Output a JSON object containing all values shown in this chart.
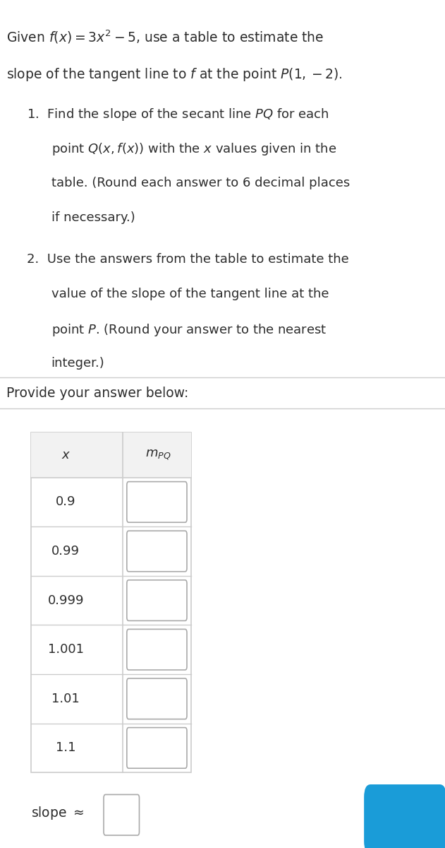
{
  "title_line1": "Given $f(x) = 3x^2 - 5$, use a table to estimate the",
  "title_line2": "slope of the tangent line to $f$ at the point $P(1, -2)$.",
  "provide_answer": "Provide your answer below:",
  "x_values": [
    "0.9",
    "0.99",
    "0.999",
    "1.001",
    "1.01",
    "1.1"
  ],
  "col1_header": "$x$",
  "col2_header": "$m_{PQ}$",
  "bg_color": "#ffffff",
  "text_color": "#2d2d2d",
  "table_border_color": "#cccccc",
  "table_header_bg": "#f2f2f2",
  "input_box_color": "#ffffff",
  "input_box_border": "#aaaaaa",
  "divider_color": "#cccccc",
  "blue_button_color": "#1a9cd8"
}
